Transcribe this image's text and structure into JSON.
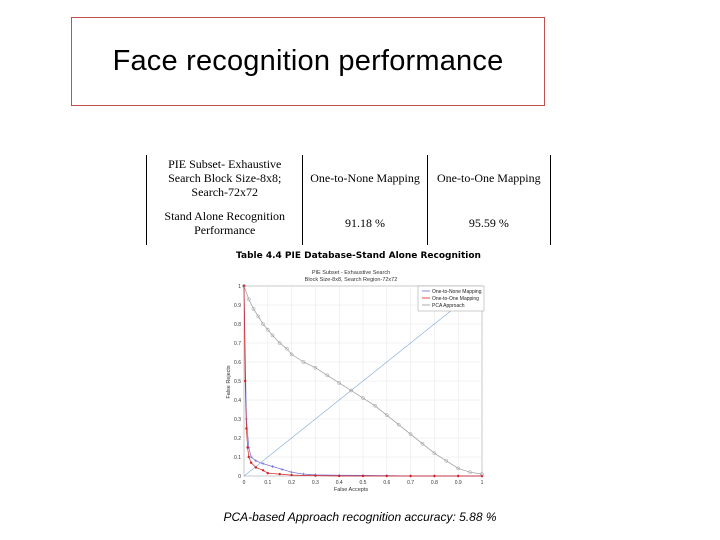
{
  "title": "Face recognition performance",
  "table": {
    "header": [
      "PIE Subset- Exhaustive Search Block Size-8x8; Search-72x72",
      "One-to-None Mapping",
      "One-to-One Mapping"
    ],
    "rows": [
      [
        "Stand Alone Recognition Performance",
        "91.18 %",
        "95.59 %"
      ]
    ]
  },
  "caption": "Table 4.4 PIE Database-Stand Alone Recognition",
  "accuracy_note": "PCA-based Approach recognition accuracy: 5.88 %",
  "chart_data": {
    "type": "line",
    "title": "PIE Subset - Exhaustive Search",
    "subtitle": "Block Size-8x8, Search Region-72x72",
    "xlabel": "False Accepts",
    "ylabel": "False Rejects",
    "xlim": [
      0,
      1
    ],
    "ylim": [
      0,
      1
    ],
    "x_ticks": [
      "0",
      "0.1",
      "0.2",
      "0.3",
      "0.4",
      "0.5",
      "0.6",
      "0.7",
      "0.8",
      "0.9",
      "1"
    ],
    "y_ticks": [
      "0",
      "0.1",
      "0.2",
      "0.3",
      "0.4",
      "0.5",
      "0.6",
      "0.7",
      "0.8",
      "0.9",
      "1"
    ],
    "legend_position": "top-right",
    "series": [
      {
        "name": "One-to-None Mapping",
        "color": "#6b6bd6",
        "marker": "plus",
        "x": [
          0.0,
          0.01,
          0.02,
          0.03,
          0.05,
          0.08,
          0.12,
          0.16,
          0.2,
          0.25,
          0.3,
          0.4,
          0.5,
          0.6,
          0.7,
          0.8,
          0.9,
          1.0
        ],
        "y": [
          1.0,
          0.3,
          0.15,
          0.1,
          0.08,
          0.065,
          0.05,
          0.035,
          0.02,
          0.01,
          0.006,
          0.004,
          0.003,
          0.002,
          0.0,
          0.0,
          0.0,
          0.0
        ]
      },
      {
        "name": "One-to-One Mapping",
        "color": "#d62020",
        "marker": "dot",
        "x": [
          0.0,
          0.005,
          0.01,
          0.015,
          0.02,
          0.03,
          0.05,
          0.08,
          0.1,
          0.15,
          0.2,
          0.3,
          0.4,
          0.5,
          0.6,
          0.7,
          0.8,
          0.9,
          1.0
        ],
        "y": [
          1.0,
          0.5,
          0.25,
          0.15,
          0.1,
          0.07,
          0.045,
          0.03,
          0.015,
          0.01,
          0.005,
          0.002,
          0.0,
          0.0,
          0.0,
          0.0,
          0.0,
          0.0,
          0.0
        ]
      },
      {
        "name": "PCA Approach",
        "color": "#9a9a9a",
        "marker": "circle",
        "x": [
          0.0,
          0.02,
          0.04,
          0.06,
          0.08,
          0.1,
          0.12,
          0.15,
          0.18,
          0.2,
          0.25,
          0.3,
          0.35,
          0.4,
          0.45,
          0.5,
          0.55,
          0.6,
          0.65,
          0.7,
          0.75,
          0.8,
          0.85,
          0.9,
          0.95,
          1.0
        ],
        "y": [
          1.0,
          0.93,
          0.88,
          0.84,
          0.8,
          0.77,
          0.74,
          0.7,
          0.67,
          0.64,
          0.6,
          0.57,
          0.53,
          0.49,
          0.45,
          0.41,
          0.37,
          0.32,
          0.27,
          0.22,
          0.17,
          0.12,
          0.08,
          0.04,
          0.02,
          0.01
        ]
      }
    ],
    "reference_line": {
      "x": [
        0,
        1
      ],
      "y": [
        0,
        1
      ],
      "color": "#7aa7d9"
    }
  }
}
